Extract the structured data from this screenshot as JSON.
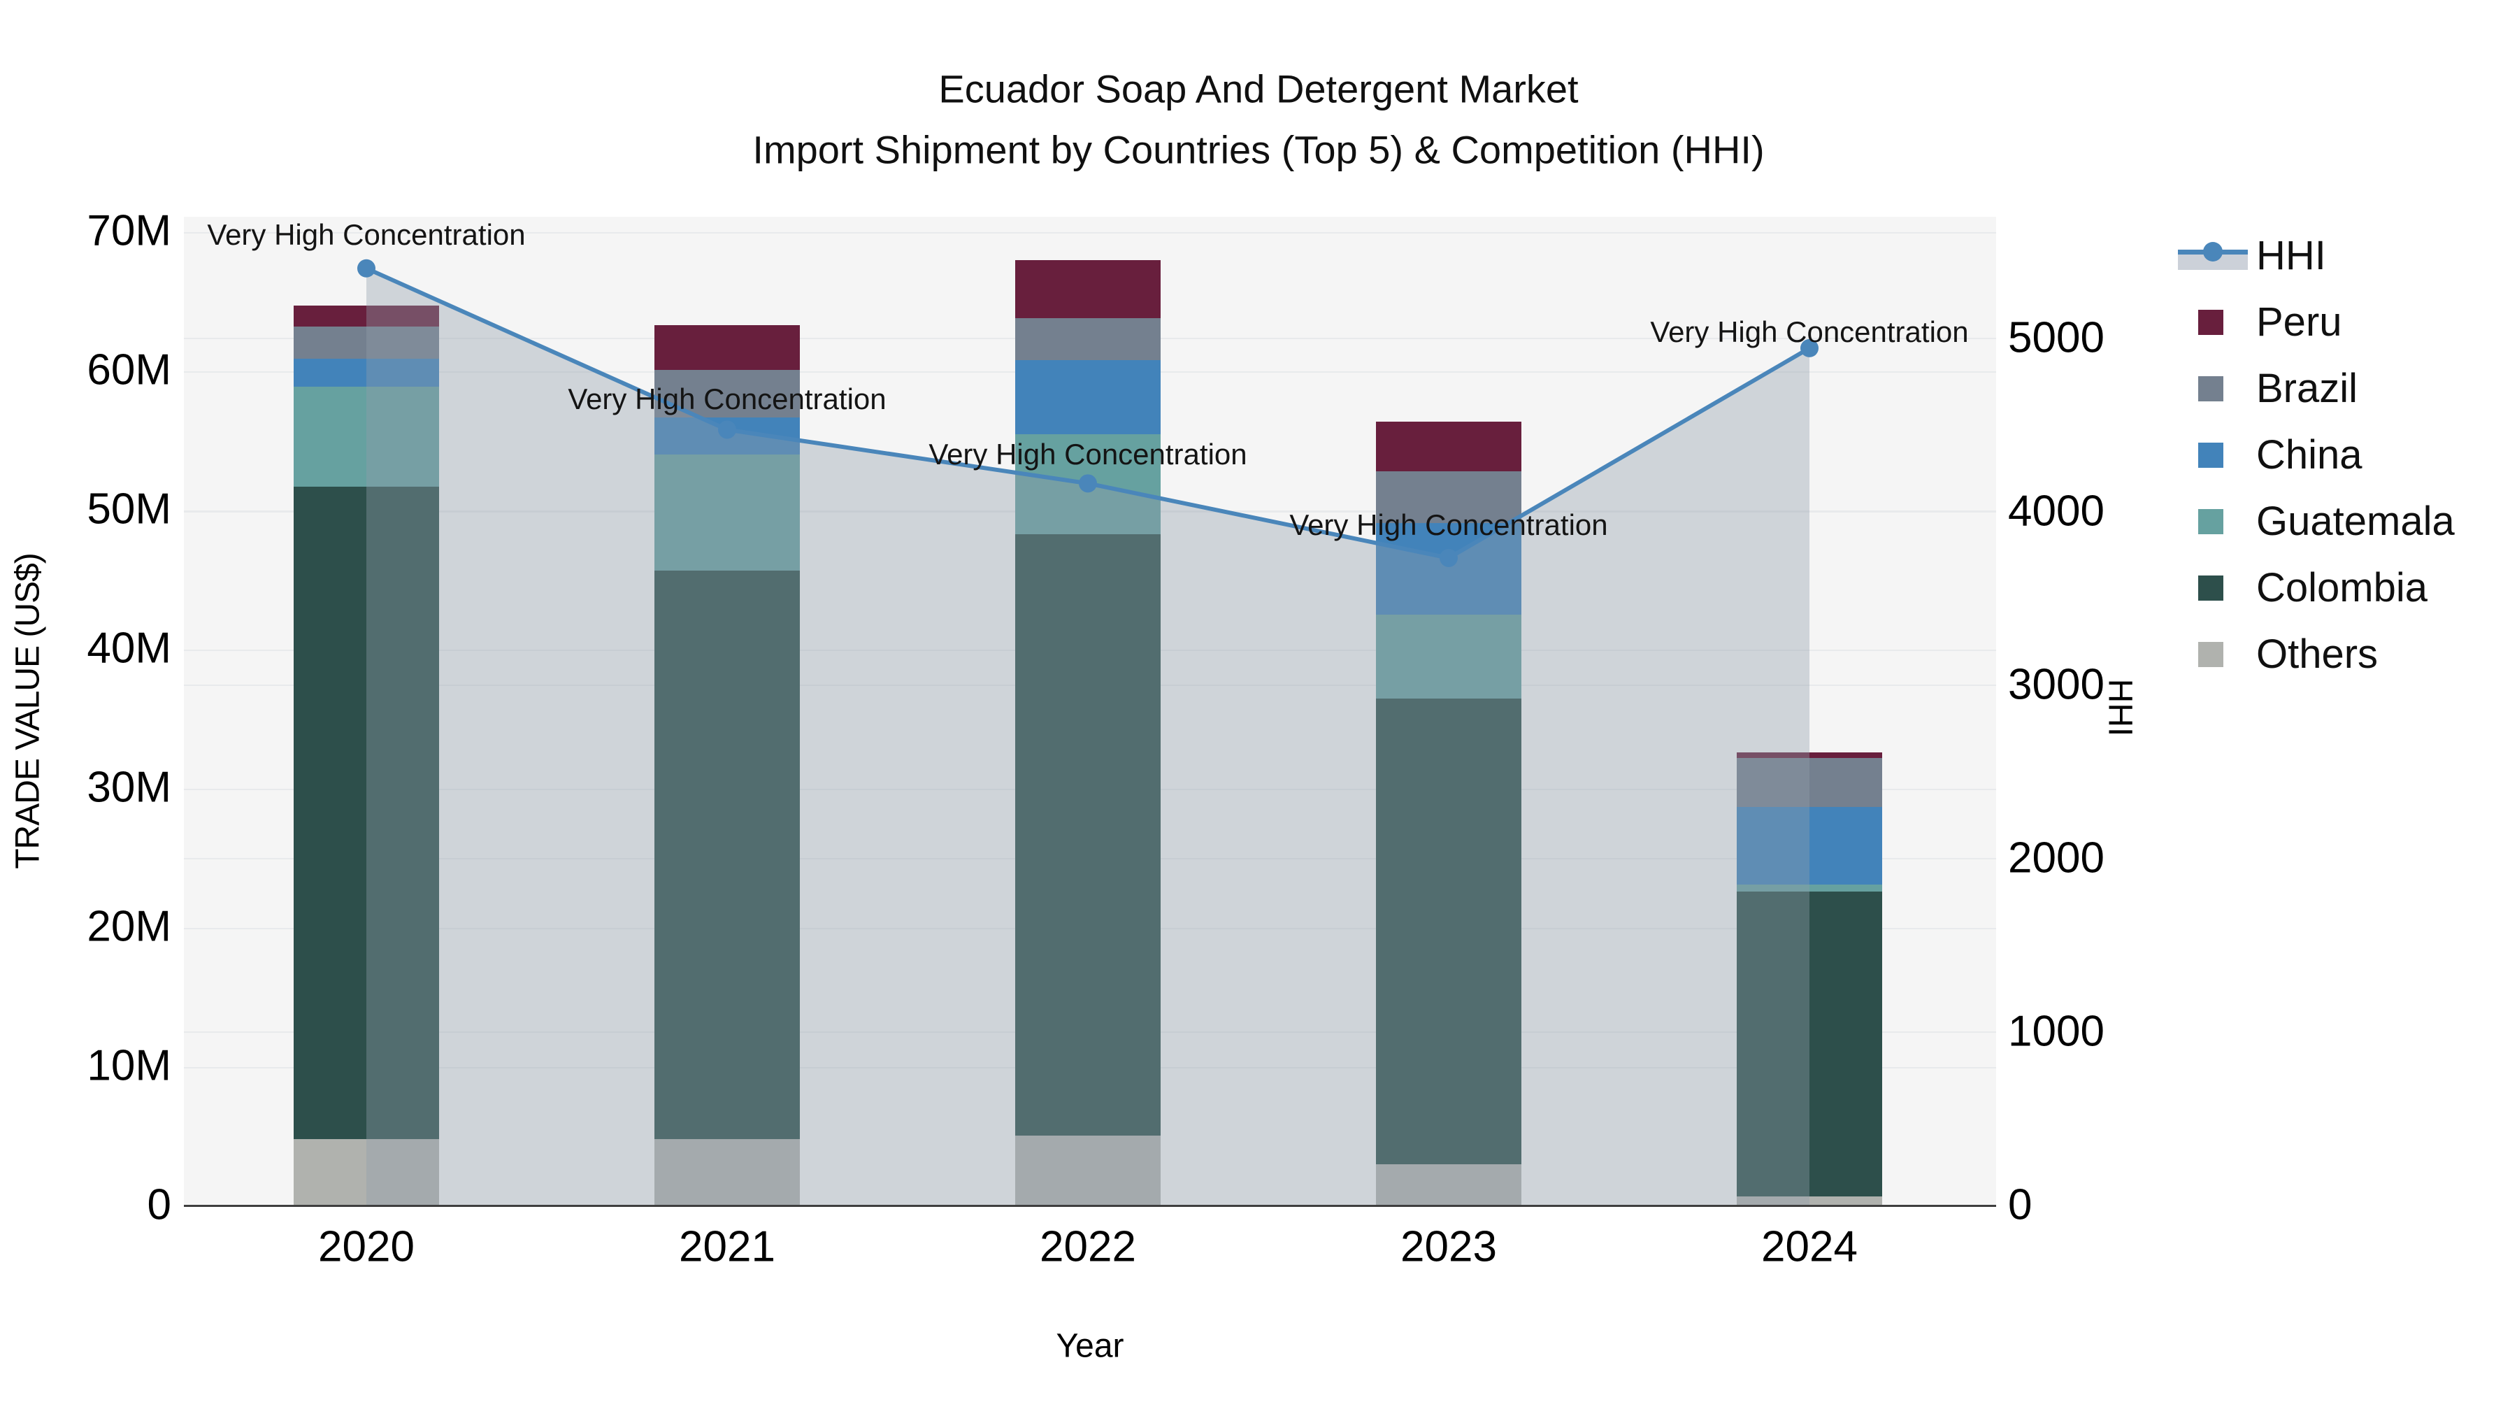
{
  "title": {
    "line1": "Ecuador Soap And Detergent Market",
    "line2": "Import Shipment by Countries (Top 5) & Competition (HHI)"
  },
  "axes": {
    "x": {
      "title": "Year",
      "ticks": [
        "2020",
        "2021",
        "2022",
        "2023",
        "2024"
      ]
    },
    "y_left": {
      "title": "TRADE VALUE (US$)",
      "ticks": [
        "0",
        "10M",
        "20M",
        "30M",
        "40M",
        "50M",
        "60M",
        "70M"
      ]
    },
    "y_right": {
      "title": "HHI",
      "ticks": [
        "0",
        "1000",
        "2000",
        "3000",
        "4000",
        "5000"
      ]
    }
  },
  "legend": {
    "items": [
      {
        "label": "HHI",
        "type": "line",
        "color": "#4a86ba"
      },
      {
        "label": "Peru",
        "type": "swatch",
        "color": "#681f3d"
      },
      {
        "label": "Brazil",
        "type": "swatch",
        "color": "#74808f"
      },
      {
        "label": "China",
        "type": "swatch",
        "color": "#4283ba"
      },
      {
        "label": "Guatemala",
        "type": "swatch",
        "color": "#66a1a0"
      },
      {
        "label": "Colombia",
        "type": "swatch",
        "color": "#2d4f4b"
      },
      {
        "label": "Others",
        "type": "swatch",
        "color": "#b0b2ae"
      }
    ]
  },
  "annotation_text": "Very High Concentration",
  "colors": {
    "plot_background": "#f5f5f5",
    "gridline": "#e8eaec",
    "axis_line": "#3f3f3f",
    "hhi_line": "#4a86ba",
    "hhi_area_fill": "rgba(144,158,172,0.38)",
    "text": "#101010"
  },
  "chart_data": {
    "type": "combo_stacked_bar_with_line",
    "categories": [
      "2020",
      "2021",
      "2022",
      "2023",
      "2024"
    ],
    "bar_unit": "USD millions (left axis, TRADE VALUE)",
    "stack_order_bottom_to_top": [
      "Others",
      "Colombia",
      "Guatemala",
      "China",
      "Brazil",
      "Peru"
    ],
    "series": [
      {
        "name": "Others",
        "color": "#b0b2ae",
        "values": [
          4.8,
          4.8,
          5.1,
          3.0,
          0.7
        ]
      },
      {
        "name": "Colombia",
        "color": "#2d4f4b",
        "values": [
          46.9,
          40.9,
          43.2,
          33.5,
          21.9
        ]
      },
      {
        "name": "Guatemala",
        "color": "#66a1a0",
        "values": [
          7.2,
          8.3,
          7.2,
          6.0,
          0.5
        ]
      },
      {
        "name": "China",
        "color": "#4283ba",
        "values": [
          2.0,
          2.7,
          5.3,
          6.6,
          5.6
        ]
      },
      {
        "name": "Brazil",
        "color": "#74808f",
        "values": [
          2.3,
          3.4,
          3.0,
          3.7,
          3.5
        ]
      },
      {
        "name": "Peru",
        "color": "#681f3d",
        "values": [
          1.5,
          3.2,
          4.2,
          3.6,
          0.4
        ]
      }
    ],
    "bar_totals": [
      64.7,
      63.3,
      68.0,
      56.4,
      32.6
    ],
    "line_series": {
      "name": "HHI",
      "axis": "right",
      "color": "#4a86ba",
      "values": [
        5400,
        4470,
        4160,
        3730,
        4940
      ],
      "point_annotations": [
        "Very High Concentration",
        "Very High Concentration",
        "Very High Concentration",
        "Very High Concentration",
        "Very High Concentration"
      ]
    },
    "xlabel": "Year",
    "ylabel_left": "TRADE VALUE (US$)",
    "ylabel_right": "HHI",
    "ylim_left_millions": [
      0,
      70
    ],
    "ylim_right": [
      0,
      5000
    ],
    "grid": true,
    "legend_position": "right"
  }
}
